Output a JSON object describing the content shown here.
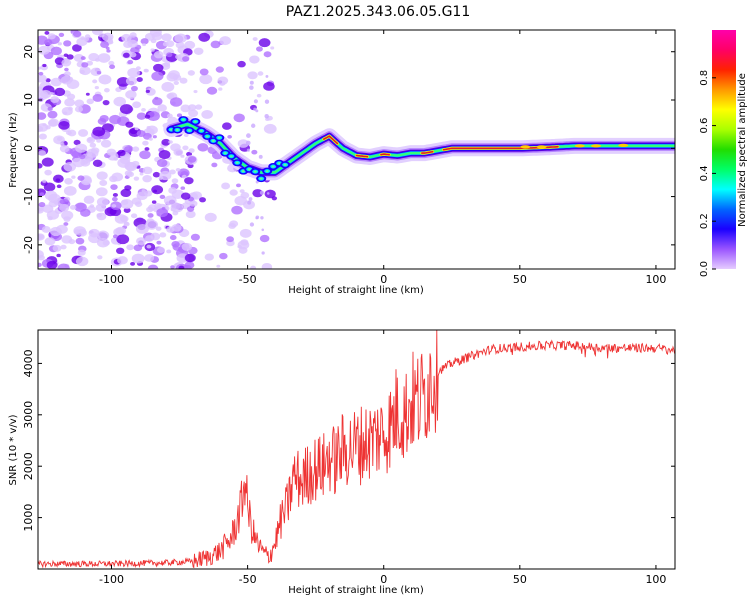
{
  "title": "PAZ1.2025.343.06.05.G11",
  "colors": {
    "snr_line": "#ee3333",
    "ridge_core": "#dd1f28",
    "background": "#ffffff",
    "scatter": "#8a2be2"
  },
  "chart_data": [
    {
      "type": "heatmap",
      "name": "spectrogram",
      "xlabel": "Height of straight line (km)",
      "ylabel": "Frequency (Hz)",
      "xlim": [
        -127,
        107
      ],
      "ylim": [
        -25,
        24.5
      ],
      "xticks": [
        -100,
        -50,
        0,
        50,
        100
      ],
      "xtick_labels": [
        "-100",
        "-50",
        "0",
        "50",
        "100"
      ],
      "yticks": [
        -20,
        -10,
        0,
        10,
        20
      ],
      "ytick_labels": [
        "-20",
        "-10",
        "0",
        "10",
        "20"
      ],
      "ridge": {
        "description": "Frequency of peak spectral amplitude vs. height",
        "x": [
          -78,
          -72,
          -65,
          -60,
          -55,
          -50,
          -45,
          -40,
          -35,
          -30,
          -25,
          -20,
          -15,
          -10,
          -5,
          0,
          5,
          10,
          15,
          20,
          25,
          30,
          40,
          50,
          60,
          70,
          80,
          90,
          100,
          107
        ],
        "y": [
          4,
          5,
          3,
          1,
          -2,
          -4,
          -5,
          -5,
          -3,
          -1,
          1,
          2.5,
          0,
          -1.5,
          -1.8,
          -1.2,
          -1.5,
          -1,
          -1,
          -0.5,
          0,
          0,
          0,
          0,
          0.2,
          0.5,
          0.5,
          0.5,
          0.5,
          0.5
        ]
      },
      "noise_region": {
        "x": [
          -127,
          -70
        ],
        "y": [
          -25,
          24.5
        ]
      },
      "colorbar": {
        "label": "Normalized spectral amplitude",
        "range": [
          0.0,
          1.0
        ],
        "ticks": [
          0.0,
          0.2,
          0.4,
          0.6,
          0.8
        ],
        "tick_labels": [
          "0.0",
          "0.2",
          "0.4",
          "0.6",
          "0.8"
        ],
        "colors": [
          "#e6ccff",
          "#9a55ff",
          "#1a00ff",
          "#0066ff",
          "#00ffff",
          "#00ff66",
          "#22dd00",
          "#aaff00",
          "#ffff00",
          "#ff9900",
          "#ff2200",
          "#ff0066",
          "#ff00aa"
        ]
      }
    },
    {
      "type": "line",
      "name": "snr",
      "xlabel": "Height of straight line (km)",
      "ylabel": "SNR (10 * v/v)",
      "xlim": [
        -127,
        107
      ],
      "ylim": [
        0,
        4650
      ],
      "xticks": [
        -100,
        -50,
        0,
        50,
        100
      ],
      "xtick_labels": [
        "-100",
        "-50",
        "0",
        "50",
        "100"
      ],
      "yticks": [
        1000,
        2000,
        3000,
        4000
      ],
      "ytick_labels": [
        "1000",
        "2000",
        "3000",
        "4000"
      ],
      "series": [
        {
          "name": "SNR",
          "x": [
            -127,
            -100,
            -80,
            -70,
            -65,
            -60,
            -56,
            -54,
            -52,
            -51,
            -50,
            -48,
            -46,
            -44,
            -42,
            -40,
            -38,
            -35,
            -33,
            -30,
            -28,
            -25,
            -22,
            -20,
            -18,
            -15,
            -10,
            -5,
            0,
            3,
            5,
            8,
            10,
            13,
            15,
            17,
            18,
            20,
            25,
            30,
            35,
            40,
            45,
            50,
            60,
            70,
            80,
            90,
            100,
            107
          ],
          "y": [
            100,
            100,
            120,
            150,
            220,
            350,
            600,
            900,
            1300,
            1800,
            1200,
            700,
            450,
            300,
            250,
            500,
            900,
            1300,
            1800,
            1700,
            1850,
            1950,
            2000,
            2200,
            2100,
            2300,
            2400,
            2500,
            2650,
            2800,
            3100,
            3000,
            3250,
            3250,
            3400,
            3700,
            3800,
            3850,
            4000,
            4100,
            4200,
            4280,
            4300,
            4320,
            4350,
            4350,
            4300,
            4300,
            4300,
            4250
          ]
        }
      ]
    }
  ]
}
